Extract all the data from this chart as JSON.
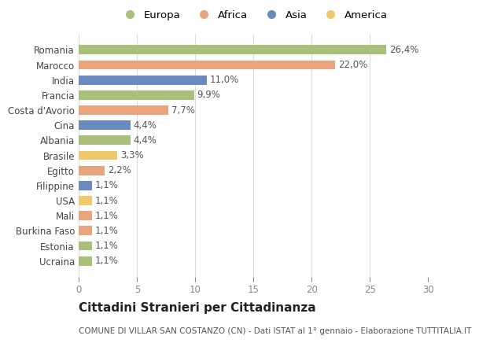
{
  "categories": [
    "Ucraina",
    "Estonia",
    "Burkina Faso",
    "Mali",
    "USA",
    "Filippine",
    "Egitto",
    "Brasile",
    "Albania",
    "Cina",
    "Costa d'Avorio",
    "Francia",
    "India",
    "Marocco",
    "Romania"
  ],
  "values": [
    1.1,
    1.1,
    1.1,
    1.1,
    1.1,
    1.1,
    2.2,
    3.3,
    4.4,
    4.4,
    7.7,
    9.9,
    11.0,
    22.0,
    26.4
  ],
  "labels": [
    "1,1%",
    "1,1%",
    "1,1%",
    "1,1%",
    "1,1%",
    "1,1%",
    "2,2%",
    "3,3%",
    "4,4%",
    "4,4%",
    "7,7%",
    "9,9%",
    "11,0%",
    "22,0%",
    "26,4%"
  ],
  "colors": [
    "#a8c07a",
    "#a8c07a",
    "#e8a47c",
    "#e8a47c",
    "#f0c96e",
    "#6b8abf",
    "#e8a47c",
    "#f0c96e",
    "#a8c07a",
    "#6b8abf",
    "#e8a47c",
    "#a8c07a",
    "#6b8abf",
    "#e8a47c",
    "#a8c07a"
  ],
  "legend_labels": [
    "Europa",
    "Africa",
    "Asia",
    "America"
  ],
  "legend_colors": [
    "#a8c07a",
    "#e8a47c",
    "#6b8abf",
    "#f0c96e"
  ],
  "title": "Cittadini Stranieri per Cittadinanza",
  "subtitle": "COMUNE DI VILLAR SAN COSTANZO (CN) - Dati ISTAT al 1° gennaio - Elaborazione TUTTITALIA.IT",
  "xlim": [
    0,
    30
  ],
  "xticks": [
    0,
    5,
    10,
    15,
    20,
    25,
    30
  ],
  "background_color": "#ffffff",
  "grid_color": "#dddddd",
  "bar_height": 0.62,
  "label_fontsize": 8.5,
  "tick_fontsize": 8.5,
  "legend_fontsize": 9.5,
  "title_fontsize": 11,
  "subtitle_fontsize": 7.5
}
